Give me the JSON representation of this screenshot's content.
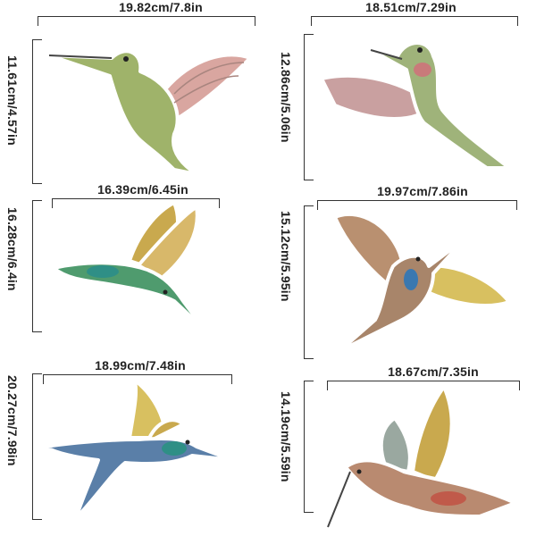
{
  "stickers": [
    {
      "width_label": "19.82cm/7.8in",
      "height_label": "11.61cm/4.57in"
    },
    {
      "width_label": "18.51cm/7.29in",
      "height_label": "12.86cm/5.06in"
    },
    {
      "width_label": "16.39cm/6.45in",
      "height_label": "16.28cm/6.4in"
    },
    {
      "width_label": "19.97cm/7.86in",
      "height_label": "15.12cm/5.95in"
    },
    {
      "width_label": "18.99cm/7.48in",
      "height_label": "20.27cm/7.98in"
    },
    {
      "width_label": "18.67cm/7.35in",
      "height_label": "14.19cm/5.59in"
    }
  ],
  "colors": {
    "text": "#222222",
    "wing_gold": "#c9a94e",
    "wing_pink": "#d9a6a0",
    "body_green": "#8fae5a",
    "throat_teal": "#2f8f86",
    "outline": "#ffffff"
  }
}
